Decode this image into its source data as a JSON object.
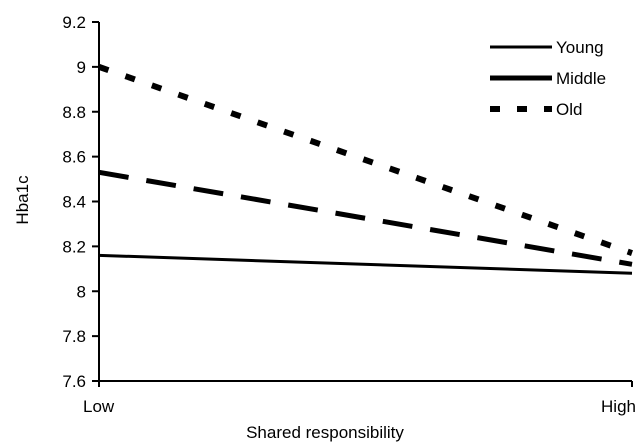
{
  "chart_data": {
    "type": "line",
    "title": "",
    "xlabel": "Shared responsibility",
    "ylabel": "Hba1c",
    "categories": [
      "Low",
      "High"
    ],
    "ylim": [
      7.6,
      9.2
    ],
    "yticks": [
      "7.6",
      "7.8",
      "8",
      "8.2",
      "8.4",
      "8.6",
      "8.8",
      "9",
      "9.2"
    ],
    "grid": false,
    "legend_position": "top-right",
    "series": [
      {
        "name": "Young",
        "style": "solid",
        "color": "#000000",
        "values": [
          8.16,
          8.08
        ]
      },
      {
        "name": "Middle",
        "style": "long-dash",
        "color": "#000000",
        "values": [
          8.53,
          8.12
        ]
      },
      {
        "name": "Old",
        "style": "short-dash",
        "color": "#000000",
        "values": [
          9.0,
          8.17
        ]
      }
    ]
  }
}
